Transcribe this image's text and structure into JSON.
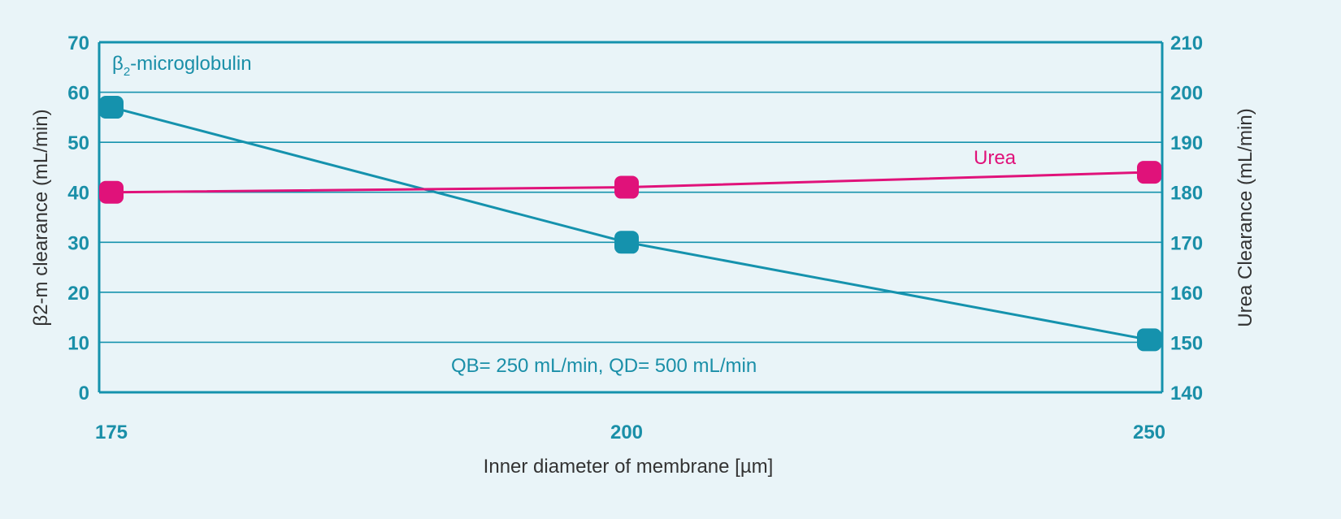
{
  "colors": {
    "teal": "#1592ad",
    "pink": "#e0127a",
    "background": "#e9f4f8",
    "text": "#333333"
  },
  "chart_data": {
    "type": "line",
    "categories": [
      "175",
      "200",
      "250"
    ],
    "xlabel": "Inner diameter of membrane [µm]",
    "ylabel_left": "β2-m clearance (mL/min)",
    "ylabel_right": "Urea Clearance (mL/min)",
    "ylim_left": [
      0,
      70
    ],
    "ylim_right": [
      140,
      210
    ],
    "yticks_left": [
      0,
      10,
      20,
      30,
      40,
      50,
      60,
      70
    ],
    "yticks_right": [
      140,
      150,
      160,
      170,
      180,
      190,
      200,
      210
    ],
    "grid": true,
    "series": [
      {
        "name": "β2-microglobulin",
        "axis": "left",
        "color": "#1592ad",
        "values": [
          57,
          30,
          10.5
        ]
      },
      {
        "name": "Urea",
        "axis": "right",
        "color": "#e0127a",
        "values": [
          180,
          181,
          184
        ]
      }
    ],
    "annotations": {
      "series_label_b2": "β",
      "series_label_b2_sub": "2",
      "series_label_b2_rest": "-microglobulin",
      "series_label_urea": "Urea",
      "conditions": "QB= 250 mL/min, QD= 500 mL/min"
    }
  }
}
